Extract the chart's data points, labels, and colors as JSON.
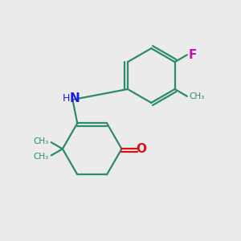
{
  "background_color": "#ebebeb",
  "bond_color": "#2d8a6e",
  "N_color": "#1a1aee",
  "O_color": "#dd1111",
  "F_color": "#cc11aa",
  "line_width": 1.6,
  "figsize": [
    3.0,
    3.0
  ],
  "dpi": 100,
  "xlim": [
    0,
    10
  ],
  "ylim": [
    0,
    10
  ]
}
